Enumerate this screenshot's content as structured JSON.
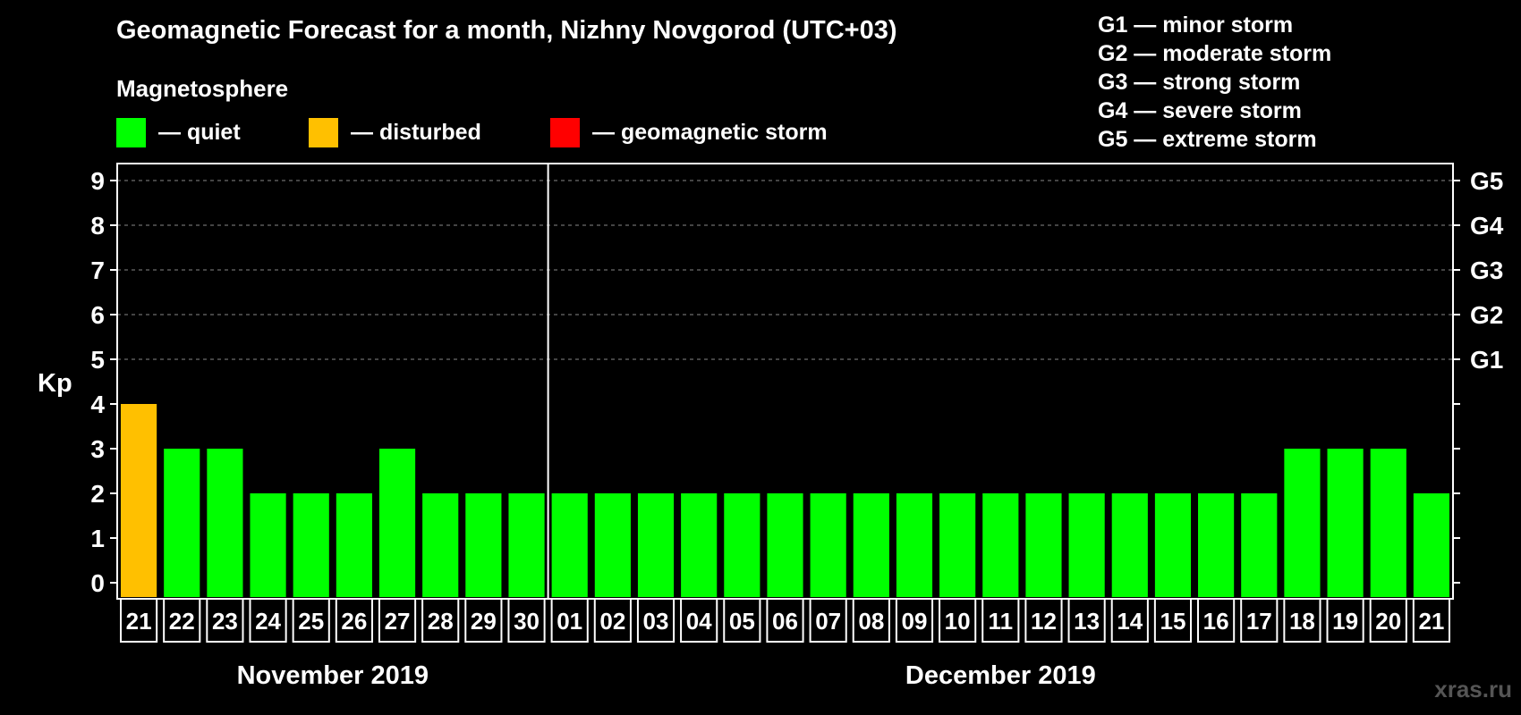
{
  "title": "Geomagnetic Forecast for a month, Nizhny Novgorod (UTC+03)",
  "legend": {
    "title": "Magnetosphere",
    "items": [
      {
        "label": "— quiet",
        "color": "#00ff00"
      },
      {
        "label": "— disturbed",
        "color": "#ffc000"
      },
      {
        "label": "— geomagnetic storm",
        "color": "#ff0000"
      }
    ]
  },
  "storm_levels": [
    "G1 — minor storm",
    "G2 — moderate storm",
    "G3 — strong storm",
    "G4 — severe storm",
    "G5 — extreme storm"
  ],
  "watermark": "xras.ru",
  "chart_data": {
    "type": "bar",
    "ylabel": "Kp",
    "ylim": [
      0,
      9
    ],
    "yticks": [
      0,
      1,
      2,
      3,
      4,
      5,
      6,
      7,
      8,
      9
    ],
    "right_axis": [
      {
        "value": 5,
        "label": "G1"
      },
      {
        "value": 6,
        "label": "G2"
      },
      {
        "value": 7,
        "label": "G3"
      },
      {
        "value": 8,
        "label": "G4"
      },
      {
        "value": 9,
        "label": "G5"
      }
    ],
    "categories": [
      "21",
      "22",
      "23",
      "24",
      "25",
      "26",
      "27",
      "28",
      "29",
      "30",
      "01",
      "02",
      "03",
      "04",
      "05",
      "06",
      "07",
      "08",
      "09",
      "10",
      "11",
      "12",
      "13",
      "14",
      "15",
      "16",
      "17",
      "18",
      "19",
      "20",
      "21"
    ],
    "values": [
      4,
      3,
      3,
      2,
      2,
      2,
      3,
      2,
      2,
      2,
      2,
      2,
      2,
      2,
      2,
      2,
      2,
      2,
      2,
      2,
      2,
      2,
      2,
      2,
      2,
      2,
      2,
      3,
      3,
      3,
      2
    ],
    "colors": [
      "#ffc000",
      "#00ff00",
      "#00ff00",
      "#00ff00",
      "#00ff00",
      "#00ff00",
      "#00ff00",
      "#00ff00",
      "#00ff00",
      "#00ff00",
      "#00ff00",
      "#00ff00",
      "#00ff00",
      "#00ff00",
      "#00ff00",
      "#00ff00",
      "#00ff00",
      "#00ff00",
      "#00ff00",
      "#00ff00",
      "#00ff00",
      "#00ff00",
      "#00ff00",
      "#00ff00",
      "#00ff00",
      "#00ff00",
      "#00ff00",
      "#00ff00",
      "#00ff00",
      "#00ff00",
      "#00ff00"
    ],
    "months": [
      {
        "label": "November 2019",
        "start": 0,
        "end": 9
      },
      {
        "label": "December 2019",
        "start": 10,
        "end": 30
      }
    ],
    "grid": true
  }
}
